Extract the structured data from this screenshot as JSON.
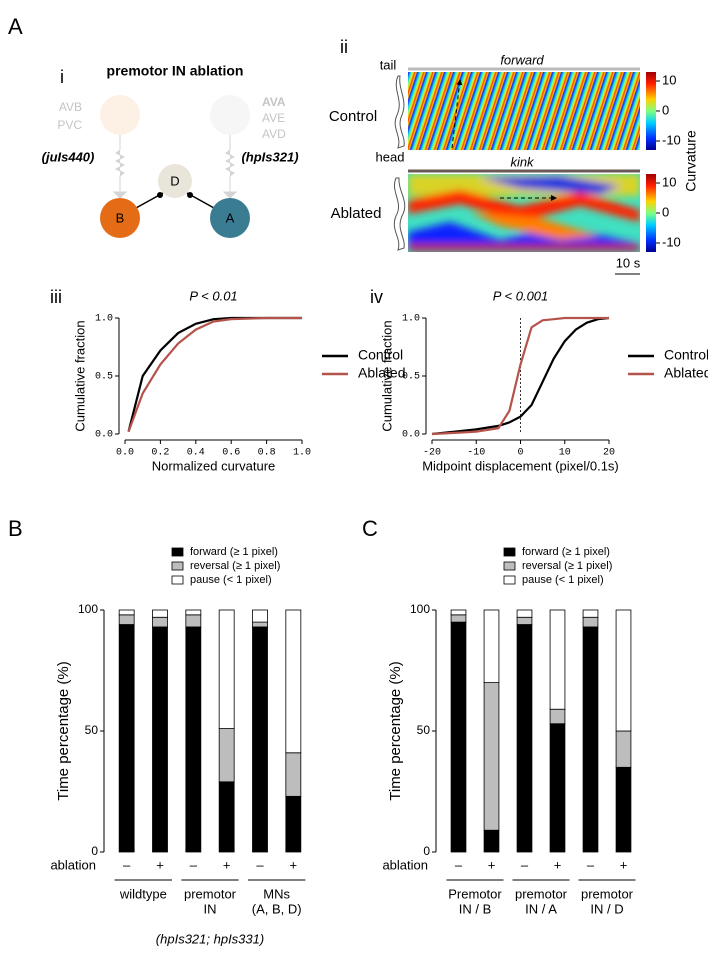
{
  "panel_labels": {
    "A": "A",
    "i": "i",
    "ii": "ii",
    "iii": "iii",
    "iv": "iv",
    "B": "B",
    "C": "C"
  },
  "diagram": {
    "title": "premotor IN ablation",
    "left_group": [
      "AVB",
      "PVC"
    ],
    "right_group": [
      "AVA",
      "AVE",
      "AVD"
    ],
    "left_strain": "(juIs440)",
    "right_strain": "(hpIs321)",
    "nodes": [
      "D",
      "B",
      "A"
    ]
  },
  "kymograph": {
    "tail": "tail",
    "head": "head",
    "rows": [
      "Control",
      "Ablated"
    ],
    "row_titles": [
      "forward",
      "kink"
    ],
    "scale_bar": "10 s",
    "colorbar": {
      "lim": [
        -13,
        13
      ],
      "ticks": [
        10,
        0,
        -10
      ],
      "label": "Curvature"
    }
  },
  "chart_data": [
    {
      "type": "line",
      "title": "P < 0.01",
      "xlabel": "Normalized curvature",
      "ylabel": "Cumulative fraction",
      "x": [
        0.02,
        0.1,
        0.2,
        0.3,
        0.4,
        0.5,
        0.6,
        0.8,
        1.0
      ],
      "xlim": [
        0,
        1
      ],
      "xticks": [
        {
          "value": 0,
          "label": "0.0"
        },
        {
          "value": 0.2,
          "label": "0.2"
        },
        {
          "value": 0.4,
          "label": "0.4"
        },
        {
          "value": 0.6,
          "label": "0.6"
        },
        {
          "value": 0.8,
          "label": "0.8"
        },
        {
          "value": 1,
          "label": "1.0"
        }
      ],
      "ylim": [
        0,
        1
      ],
      "yticks": [
        {
          "value": 0,
          "label": "0.0"
        },
        {
          "value": 0.5,
          "label": "0.5"
        },
        {
          "value": 1,
          "label": "1.0"
        }
      ],
      "legend": "right",
      "series": [
        {
          "name": "Control",
          "color": "#000000",
          "values": [
            0.02,
            0.5,
            0.72,
            0.87,
            0.95,
            0.99,
            1.0,
            1.0,
            1.0
          ]
        },
        {
          "name": "Ablated",
          "color": "#b5534b",
          "values": [
            0.02,
            0.35,
            0.6,
            0.78,
            0.9,
            0.97,
            0.99,
            1.0,
            1.0
          ]
        }
      ]
    },
    {
      "type": "line",
      "title": "P < 0.001",
      "xlabel": "Midpoint displacement (pixel/0.1s)",
      "ylabel": "Cumulative fraction",
      "x": [
        -20,
        -15,
        -10,
        -5,
        -2.5,
        0,
        2.5,
        5,
        7.5,
        10,
        12.5,
        15,
        17.5,
        20
      ],
      "xlim": [
        -20,
        20
      ],
      "xticks": [
        -20,
        -10,
        0,
        10,
        20
      ],
      "ylim": [
        0,
        1
      ],
      "yticks": [
        {
          "value": 0,
          "label": "0.0"
        },
        {
          "value": 0.5,
          "label": "0.5"
        },
        {
          "value": 1,
          "label": "1.0"
        }
      ],
      "vline": 0,
      "legend": "right",
      "series": [
        {
          "name": "Control",
          "color": "#000000",
          "values": [
            0.0,
            0.02,
            0.04,
            0.07,
            0.1,
            0.15,
            0.25,
            0.45,
            0.65,
            0.8,
            0.9,
            0.96,
            0.99,
            1.0
          ]
        },
        {
          "name": "Ablated",
          "color": "#b5534b",
          "values": [
            0.0,
            0.01,
            0.02,
            0.05,
            0.2,
            0.6,
            0.92,
            0.98,
            0.99,
            1.0,
            1.0,
            1.0,
            1.0,
            1.0
          ]
        }
      ]
    },
    {
      "type": "stacked_bar",
      "ylabel": "Time percentage (%)",
      "xlabel": "ablation",
      "categories": [
        "–",
        "+",
        "–",
        "+",
        "–",
        "+"
      ],
      "groups": [
        [
          "wildtype"
        ],
        [
          "premotor",
          "IN"
        ],
        [
          "MNs",
          "(A, B, D)"
        ]
      ],
      "note": "(hpIs321; hpIs331)",
      "ylim": [
        0,
        100
      ],
      "yticks": [
        0,
        50,
        100
      ],
      "legend": "top",
      "series": [
        {
          "name": "forward (≥ 1 pixel)",
          "color": "#000000",
          "values": [
            94,
            93,
            93,
            29,
            93,
            23
          ]
        },
        {
          "name": "reversal (≥ 1 pixel)",
          "color": "#bdbdbd",
          "values": [
            4,
            4,
            5,
            22,
            2,
            18
          ]
        },
        {
          "name": "pause  (< 1 pixel)",
          "color": "#ffffff",
          "values": [
            2,
            3,
            2,
            49,
            5,
            59
          ]
        }
      ]
    },
    {
      "type": "stacked_bar",
      "ylabel": "Time percentage (%)",
      "xlabel": "ablation",
      "categories": [
        "–",
        "+",
        "–",
        "+",
        "–",
        "+"
      ],
      "groups": [
        [
          "Premotor",
          "IN / B"
        ],
        [
          "premotor",
          "IN / A"
        ],
        [
          "premotor",
          "IN / D"
        ]
      ],
      "ylim": [
        0,
        100
      ],
      "yticks": [
        0,
        50,
        100
      ],
      "legend": "top",
      "series": [
        {
          "name": "forward (≥ 1 pixel)",
          "color": "#000000",
          "values": [
            95,
            9,
            94,
            53,
            93,
            35
          ]
        },
        {
          "name": "reversal (≥ 1 pixel)",
          "color": "#bdbdbd",
          "values": [
            3,
            61,
            3,
            6,
            4,
            15
          ]
        },
        {
          "name": "pause  (< 1 pixel)",
          "color": "#ffffff",
          "values": [
            2,
            30,
            3,
            41,
            3,
            50
          ]
        }
      ]
    }
  ]
}
